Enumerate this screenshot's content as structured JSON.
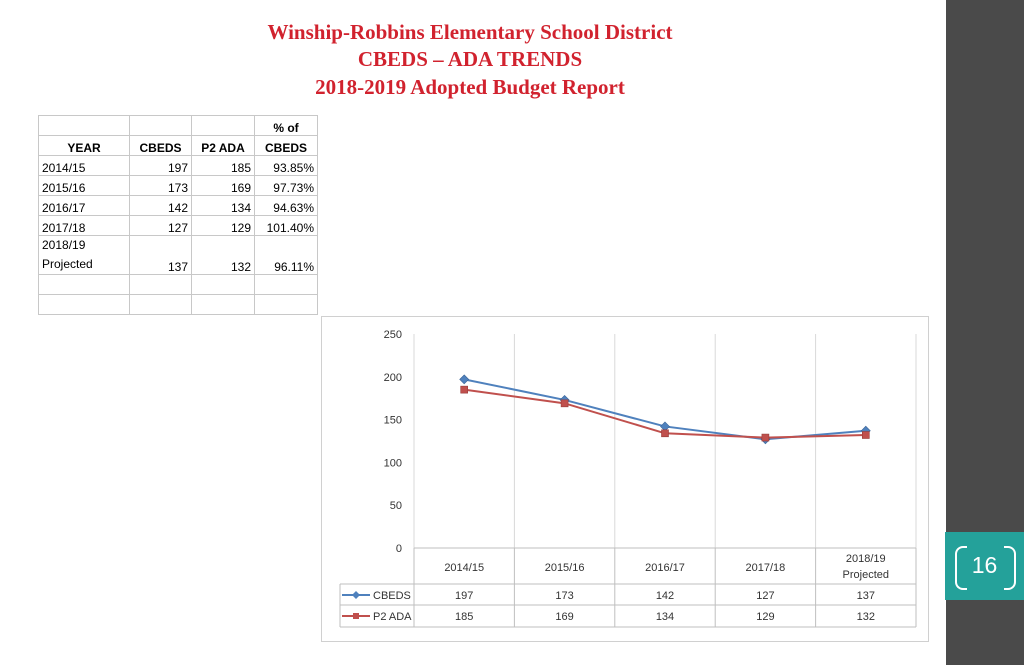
{
  "header": {
    "line1": "Winship-Robbins Elementary School District",
    "line2": "CBEDS – ADA TRENDS",
    "line3": "2018-2019 Adopted  Budget  Report"
  },
  "table": {
    "headers": [
      [
        "",
        "",
        "",
        "% of"
      ],
      [
        "YEAR",
        "CBEDS",
        "P2 ADA",
        "CBEDS"
      ]
    ],
    "rows": [
      [
        "2014/15",
        "197",
        "185",
        "93.85%"
      ],
      [
        "2015/16",
        "173",
        "169",
        "97.73%"
      ],
      [
        "2016/17",
        "142",
        "134",
        "94.63%"
      ],
      [
        "2017/18",
        "127",
        "129",
        "101.40%"
      ],
      [
        "2018/19\nProjected",
        "137",
        "132",
        "96.11%"
      ],
      [
        "",
        "",
        "",
        ""
      ],
      [
        "",
        "",
        "",
        ""
      ]
    ]
  },
  "chart_data": {
    "type": "line",
    "categories": [
      "2014/15",
      "2015/16",
      "2016/17",
      "2017/18",
      "2018/19 Projected"
    ],
    "series": [
      {
        "name": "CBEDS",
        "values": [
          197,
          173,
          142,
          127,
          137
        ],
        "color": "#4f81bd",
        "marker": "diamond"
      },
      {
        "name": "P2 ADA",
        "values": [
          185,
          169,
          134,
          129,
          132
        ],
        "color": "#c0504d",
        "marker": "square"
      }
    ],
    "ylim": [
      0,
      250
    ],
    "yticks": [
      0,
      50,
      100,
      150,
      200,
      250
    ],
    "grid": "vertical",
    "legend": "data-table-below"
  },
  "page_number": "16",
  "colors": {
    "title": "#d1222e",
    "sidebar": "#4a4a4a",
    "badge": "#24a19a"
  }
}
